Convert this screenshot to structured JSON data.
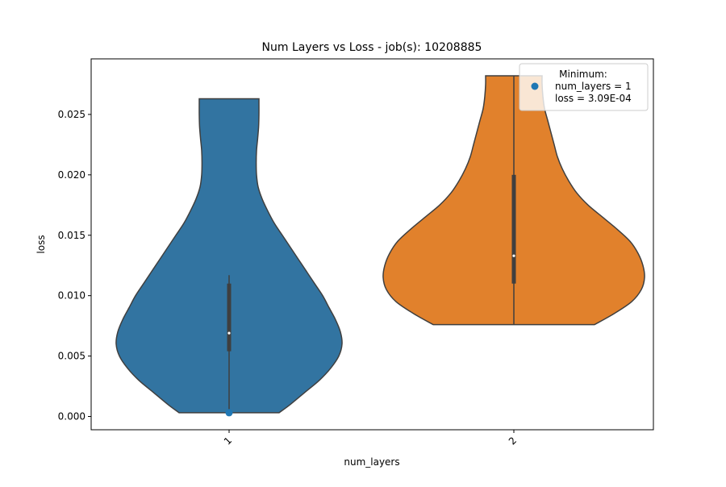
{
  "chart_data": {
    "type": "violin",
    "title": "Num Layers vs Loss - job(s): 10208885",
    "xlabel": "num_layers",
    "ylabel": "loss",
    "categories": [
      "1",
      "2"
    ],
    "ylim": [
      -0.0011,
      0.0296
    ],
    "yticks": [
      0.0,
      0.005,
      0.01,
      0.015,
      0.02,
      0.025
    ],
    "ytick_labels": [
      "0.000",
      "0.005",
      "0.010",
      "0.015",
      "0.020",
      "0.025"
    ],
    "grid": false,
    "series": [
      {
        "category": "1",
        "color": "#3274a1",
        "min": 0.00031,
        "max": 0.0263,
        "q1": 0.0054,
        "median": 0.0069,
        "q3": 0.011,
        "whisker_high": 0.0117,
        "density_profile": [
          [
            0.00031,
            0.31
          ],
          [
            0.001,
            0.38
          ],
          [
            0.002,
            0.47
          ],
          [
            0.003,
            0.56
          ],
          [
            0.004,
            0.63
          ],
          [
            0.005,
            0.68
          ],
          [
            0.006,
            0.7
          ],
          [
            0.007,
            0.69
          ],
          [
            0.008,
            0.66
          ],
          [
            0.009,
            0.62
          ],
          [
            0.01,
            0.58
          ],
          [
            0.011,
            0.53
          ],
          [
            0.012,
            0.48
          ],
          [
            0.013,
            0.43
          ],
          [
            0.014,
            0.38
          ],
          [
            0.015,
            0.33
          ],
          [
            0.016,
            0.28
          ],
          [
            0.017,
            0.24
          ],
          [
            0.018,
            0.205
          ],
          [
            0.019,
            0.18
          ],
          [
            0.02,
            0.17
          ],
          [
            0.021,
            0.168
          ],
          [
            0.022,
            0.17
          ],
          [
            0.023,
            0.177
          ],
          [
            0.024,
            0.183
          ],
          [
            0.025,
            0.185
          ],
          [
            0.026,
            0.185
          ],
          [
            0.0263,
            0.185
          ]
        ]
      },
      {
        "category": "2",
        "color": "#e1812c",
        "min": 0.0076,
        "max": 0.0282,
        "q1": 0.011,
        "median": 0.0133,
        "q3": 0.02,
        "whisker_high": 0.0282,
        "density_profile": [
          [
            0.0076,
            0.5
          ],
          [
            0.0085,
            0.62
          ],
          [
            0.0095,
            0.73
          ],
          [
            0.0105,
            0.79
          ],
          [
            0.0115,
            0.81
          ],
          [
            0.0125,
            0.8
          ],
          [
            0.0135,
            0.77
          ],
          [
            0.0145,
            0.72
          ],
          [
            0.0155,
            0.64
          ],
          [
            0.0165,
            0.55
          ],
          [
            0.0175,
            0.46
          ],
          [
            0.0185,
            0.39
          ],
          [
            0.0195,
            0.34
          ],
          [
            0.0205,
            0.3
          ],
          [
            0.0215,
            0.27
          ],
          [
            0.0225,
            0.25
          ],
          [
            0.0235,
            0.23
          ],
          [
            0.0245,
            0.21
          ],
          [
            0.0255,
            0.19
          ],
          [
            0.0265,
            0.18
          ],
          [
            0.0275,
            0.175
          ],
          [
            0.0282,
            0.175
          ]
        ]
      }
    ],
    "minimum_point": {
      "category": "1",
      "value": 0.000309,
      "color": "#1f77b4"
    },
    "legend": {
      "placement": "top-right",
      "lines": [
        "Minimum:",
        "num_layers = 1",
        "loss = 3.09E-04"
      ],
      "marker_color": "#1f77b4"
    }
  }
}
